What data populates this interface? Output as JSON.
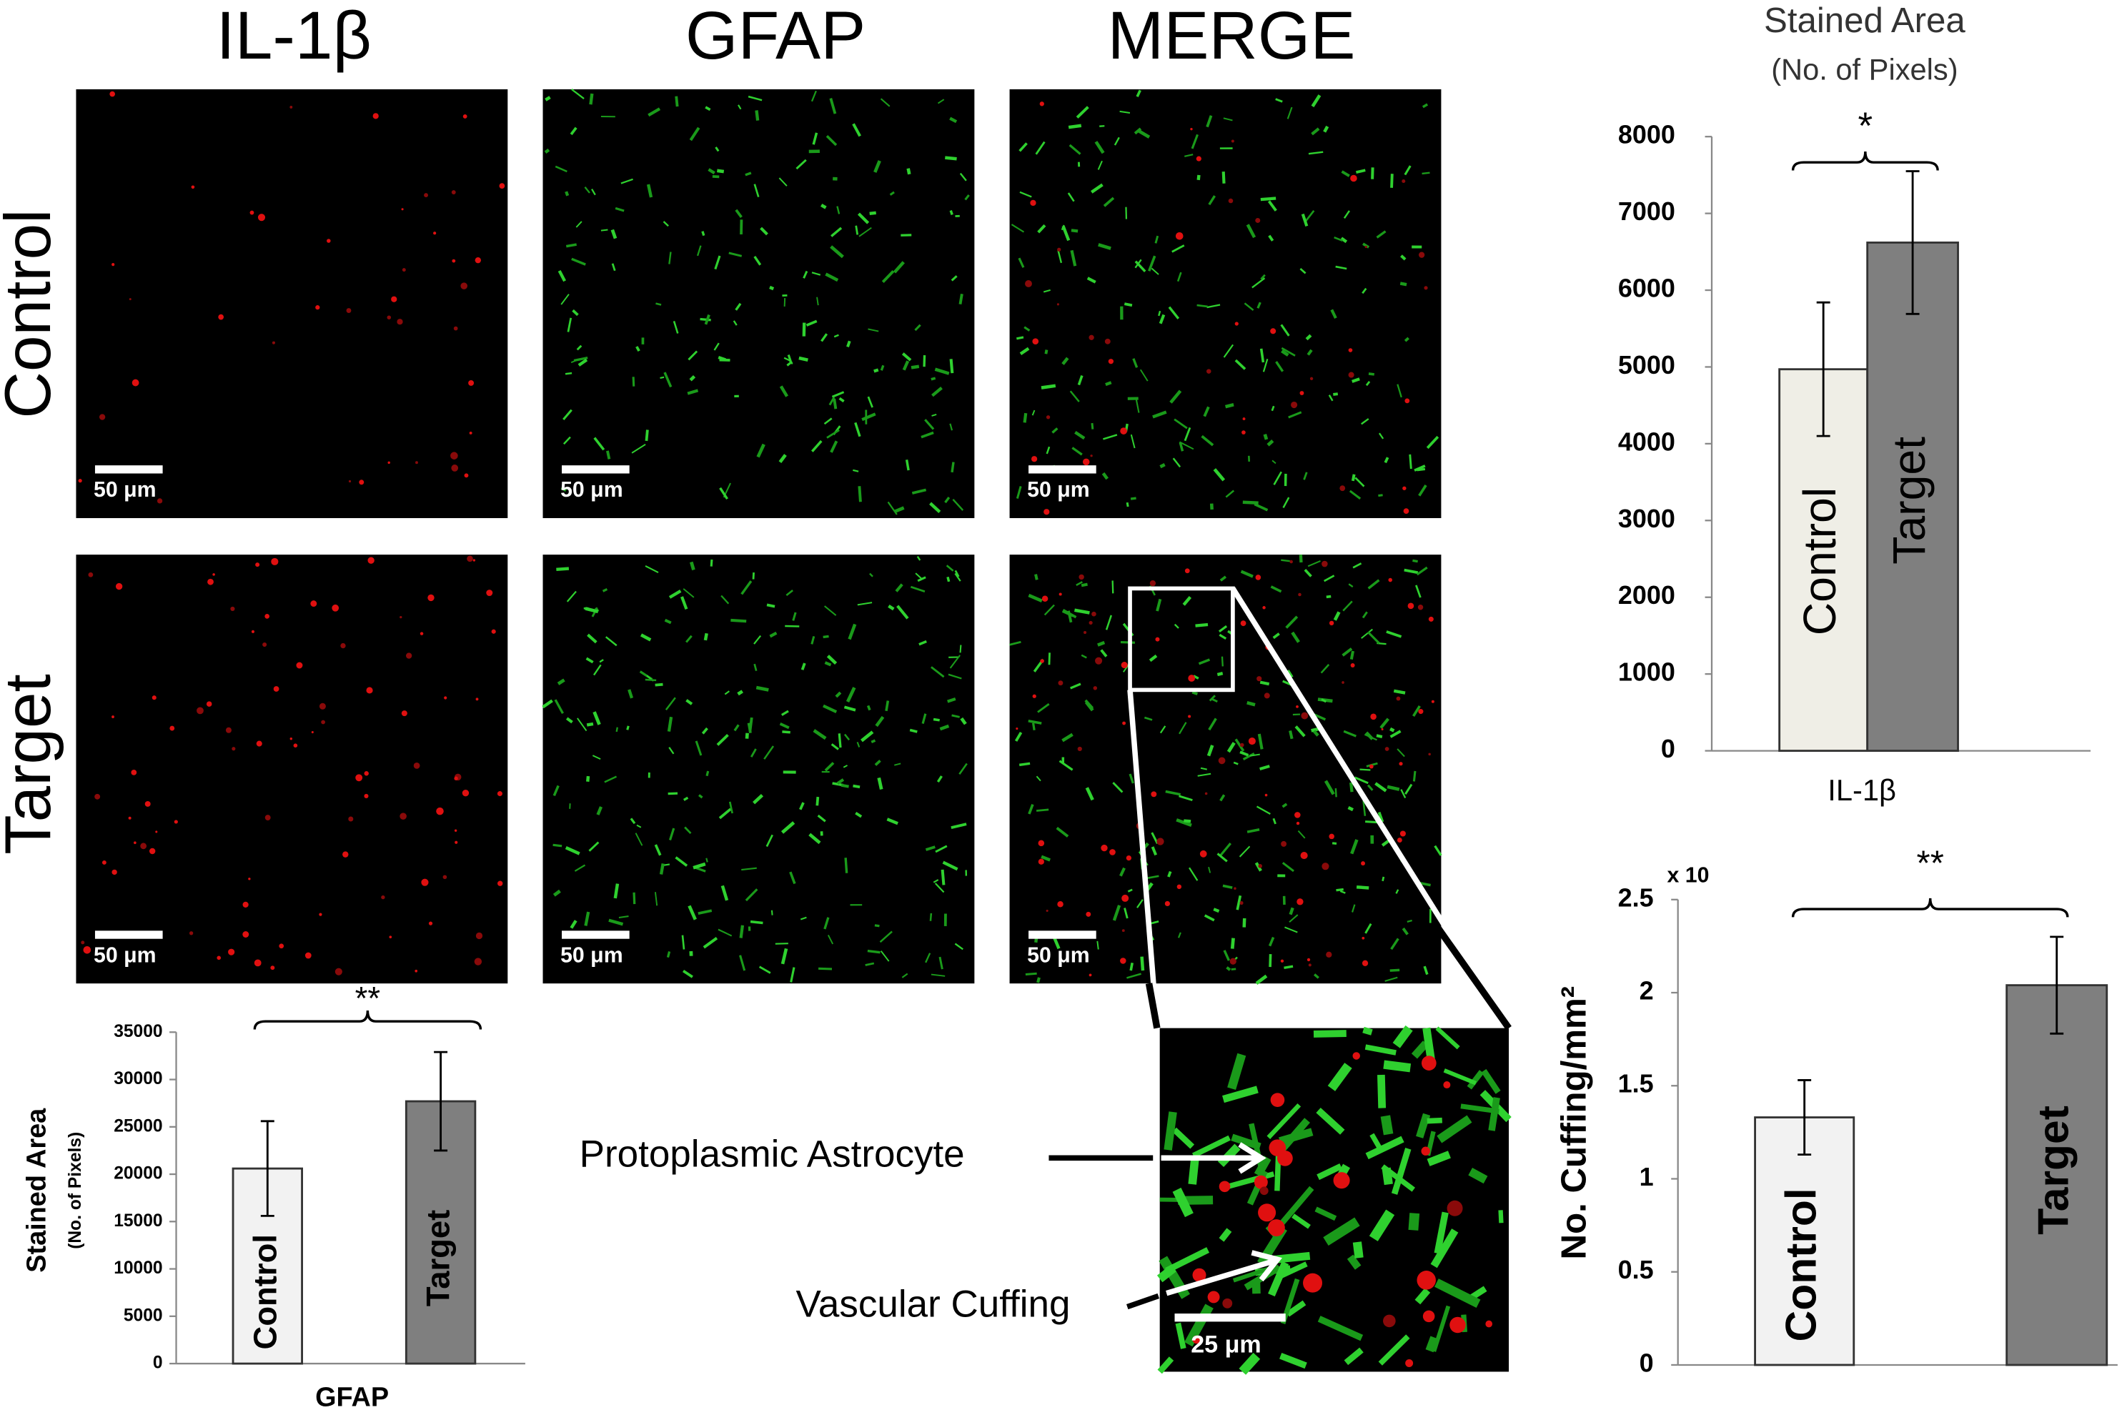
{
  "panels": {
    "column_headers": [
      "IL-1β",
      "GFAP",
      "MERGE"
    ],
    "row_labels": [
      "Control",
      "Target"
    ],
    "scale_bar": "50 μm",
    "inset_scale_bar": "25 μm",
    "annotations": [
      "Protoplasmic Astrocyte",
      "Vascular Cuffing"
    ]
  },
  "chart_data": [
    {
      "type": "bar",
      "title": "Stained Area",
      "subtitle": "(No. of Pixels)",
      "x_label": "IL-1β",
      "categories": [
        "Control",
        "Target"
      ],
      "values": [
        4970,
        6620
      ],
      "errors": [
        870,
        930
      ],
      "colors": [
        "#efeee6",
        "#7f7f7f"
      ],
      "significance": "*",
      "ylim": [
        0,
        8000
      ],
      "yticks": [
        0,
        1000,
        2000,
        3000,
        4000,
        5000,
        6000,
        7000,
        8000
      ]
    },
    {
      "type": "bar",
      "y_label": "Stained Area",
      "y_sublabel": "(No. of Pixels)",
      "x_label": "GFAP",
      "categories": [
        "Control",
        "Target"
      ],
      "values": [
        20600,
        27700
      ],
      "errors": [
        5000,
        5200
      ],
      "colors": [
        "#f2f2f2",
        "#7f7f7f"
      ],
      "significance": "**",
      "ylim": [
        0,
        35000
      ],
      "yticks": [
        0,
        5000,
        10000,
        15000,
        20000,
        25000,
        30000,
        35000
      ]
    },
    {
      "type": "bar",
      "y_label": "No. Cuffing/mm²",
      "axis_note": "x 10",
      "categories": [
        "Control",
        "Target"
      ],
      "values": [
        1.33,
        2.04
      ],
      "errors": [
        0.2,
        0.26
      ],
      "colors": [
        "#f2f2f2",
        "#7f7f7f"
      ],
      "significance": "**",
      "ylim": [
        0,
        2.5
      ],
      "yticks": [
        0,
        0.5,
        1,
        1.5,
        2,
        2.5
      ]
    }
  ]
}
